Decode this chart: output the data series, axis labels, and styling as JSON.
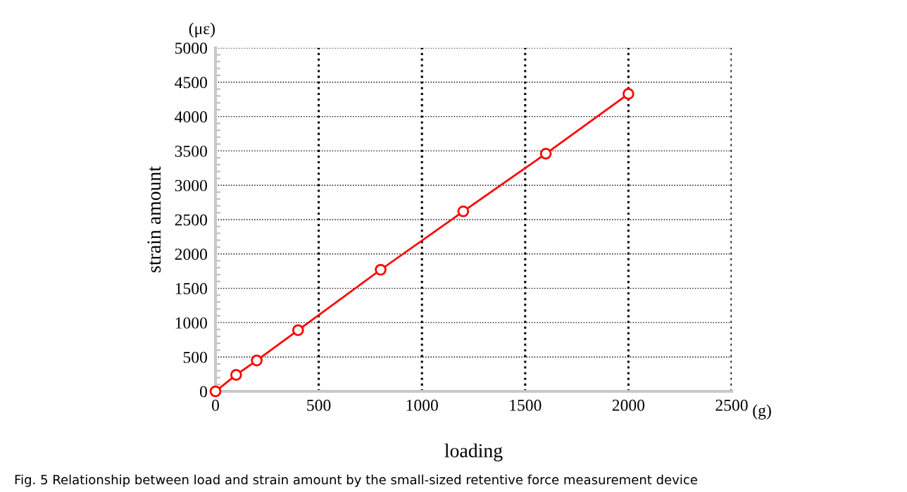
{
  "chart_data": {
    "type": "line",
    "xlabel": "loading",
    "ylabel": "strain amount",
    "x": [
      0,
      100,
      200,
      400,
      800,
      1200,
      1600,
      2000
    ],
    "series": [
      {
        "color": "#ff0000",
        "values": [
          0,
          240,
          450,
          890,
          1770,
          2620,
          3460,
          4330
        ]
      }
    ],
    "xlim": [
      0,
      2500
    ],
    "xticks": [
      0,
      500,
      1000,
      1500,
      2000,
      2500
    ],
    "ylim": [
      0,
      5000
    ],
    "yticks": [
      0,
      500,
      1000,
      1500,
      2000,
      2500,
      3000,
      3500,
      4000,
      4500,
      5000
    ],
    "grid": true,
    "marker": "circle",
    "line_style": "solid",
    "annotations": [
      "(με)",
      "(g)",
      "Fig. 5 Relationship between load and strain amount by the small-sized retentive force measurement device"
    ]
  }
}
